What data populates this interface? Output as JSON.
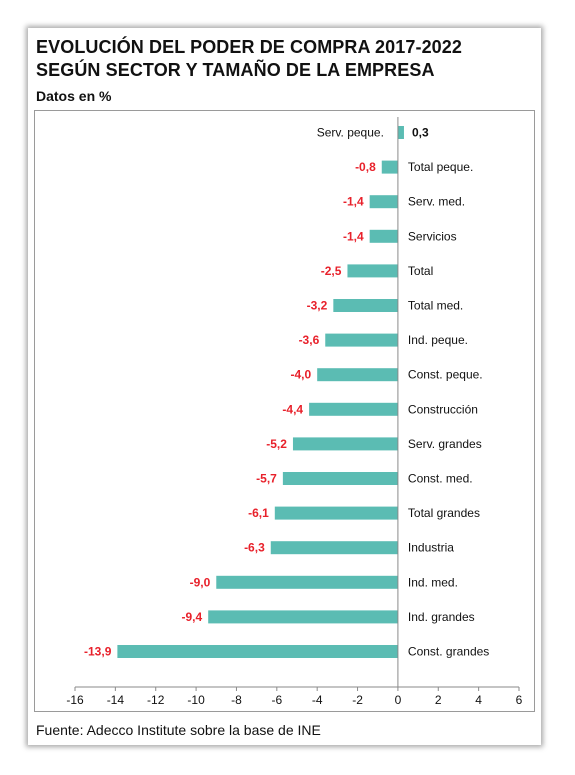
{
  "title_line1": "EVOLUCIÓN DEL PODER DE COMPRA 2017-2022",
  "title_line2": "SEGÚN SECTOR Y TAMAÑO DE LA EMPRESA",
  "subtitle": "Datos en %",
  "source": "Fuente: Adecco Institute sobre la base de INE",
  "colors": {
    "bar": "#5bbcb3",
    "negative_label": "#e8212b",
    "positive_label": "#111111"
  },
  "chart_data": {
    "type": "bar",
    "orientation": "horizontal",
    "categories": [
      "Serv. peque.",
      "Total peque.",
      "Serv. med.",
      "Servicios",
      "Total",
      "Total med.",
      "Ind. peque.",
      "Const. peque.",
      "Construcción",
      "Serv. grandes",
      "Const. med.",
      "Total grandes",
      "Industria",
      "Ind. med.",
      "Ind. grandes",
      "Const. grandes"
    ],
    "values": [
      0.3,
      -0.8,
      -1.4,
      -1.4,
      -2.5,
      -3.2,
      -3.6,
      -4.0,
      -4.4,
      -5.2,
      -5.7,
      -6.1,
      -6.3,
      -9.0,
      -9.4,
      -13.9
    ],
    "value_labels": [
      "0,3",
      "-0,8",
      "-1,4",
      "-1,4",
      "-2,5",
      "-3,2",
      "-3,6",
      "-4,0",
      "-4,4",
      "-5,2",
      "-5,7",
      "-6,1",
      "-6,3",
      "-9,0",
      "-9,4",
      "-13,9"
    ],
    "xlim": [
      -16,
      6
    ],
    "xticks": [
      -16,
      -14,
      -12,
      -10,
      -8,
      -6,
      -4,
      -2,
      0,
      2,
      4,
      6
    ],
    "grid": false
  }
}
